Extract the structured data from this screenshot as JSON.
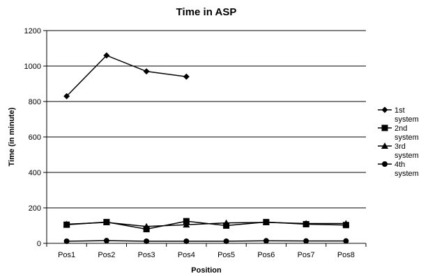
{
  "chart_data": {
    "type": "line",
    "title": "Time in ASP",
    "xlabel": "Position",
    "ylabel": "Time (in minute)",
    "categories": [
      "Pos1",
      "Pos2",
      "Pos3",
      "Pos4",
      "Pos5",
      "Pos6",
      "Pos7",
      "Pos8"
    ],
    "ylim": [
      0,
      1200
    ],
    "yticks": [
      0,
      200,
      400,
      600,
      800,
      1000,
      1200
    ],
    "grid": true,
    "legend_position": "right",
    "series": [
      {
        "name": "1st system",
        "marker": "diamond",
        "values": [
          830,
          1060,
          970,
          940,
          null,
          null,
          null,
          null
        ]
      },
      {
        "name": "2nd system",
        "marker": "square",
        "values": [
          105,
          120,
          80,
          125,
          100,
          120,
          108,
          103
        ]
      },
      {
        "name": "3rd system",
        "marker": "triangle",
        "values": [
          108,
          118,
          95,
          105,
          115,
          118,
          112,
          112
        ]
      },
      {
        "name": "4th system",
        "marker": "circle",
        "values": [
          12,
          15,
          12,
          12,
          12,
          14,
          13,
          13
        ]
      }
    ],
    "colors": {
      "line": "#000000",
      "grid": "#000000",
      "background": "#ffffff"
    }
  }
}
